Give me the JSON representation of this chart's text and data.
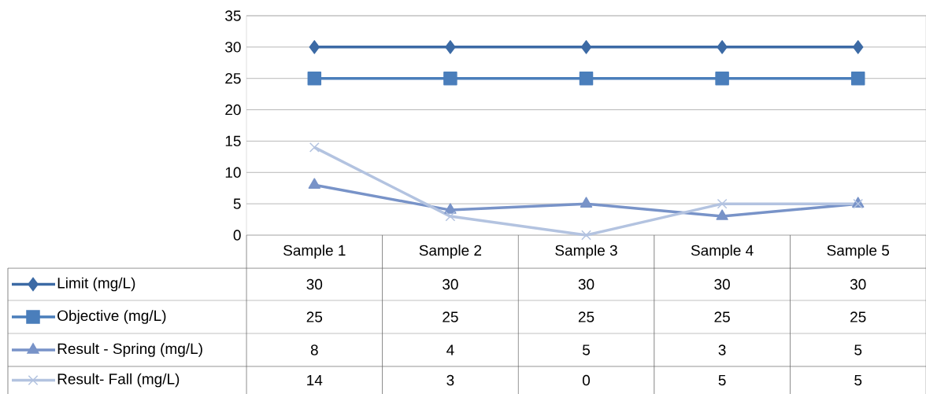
{
  "chart_data": {
    "type": "line",
    "categories": [
      "Sample 1",
      "Sample 2",
      "Sample 3",
      "Sample 4",
      "Sample 5"
    ],
    "series": [
      {
        "name": "Limit (mg/L)",
        "color": "#3c6aa5",
        "marker": "diamond",
        "values": [
          30,
          30,
          30,
          30,
          30
        ]
      },
      {
        "name": "Objective (mg/L)",
        "color": "#4a7ebb",
        "marker": "square",
        "values": [
          25,
          25,
          25,
          25,
          25
        ]
      },
      {
        "name": "Result - Spring (mg/L)",
        "color": "#7893c8",
        "marker": "triangle",
        "values": [
          8,
          4,
          5,
          3,
          5
        ]
      },
      {
        "name": "Result- Fall (mg/L)",
        "color": "#b3c3e0",
        "marker": "cross",
        "values": [
          14,
          3,
          0,
          5,
          5
        ]
      }
    ],
    "ylim": [
      0,
      35
    ],
    "yticks": [
      0,
      5,
      10,
      15,
      20,
      25,
      30,
      35
    ],
    "grid": "y",
    "legend": "bottom",
    "data_labels": true
  }
}
